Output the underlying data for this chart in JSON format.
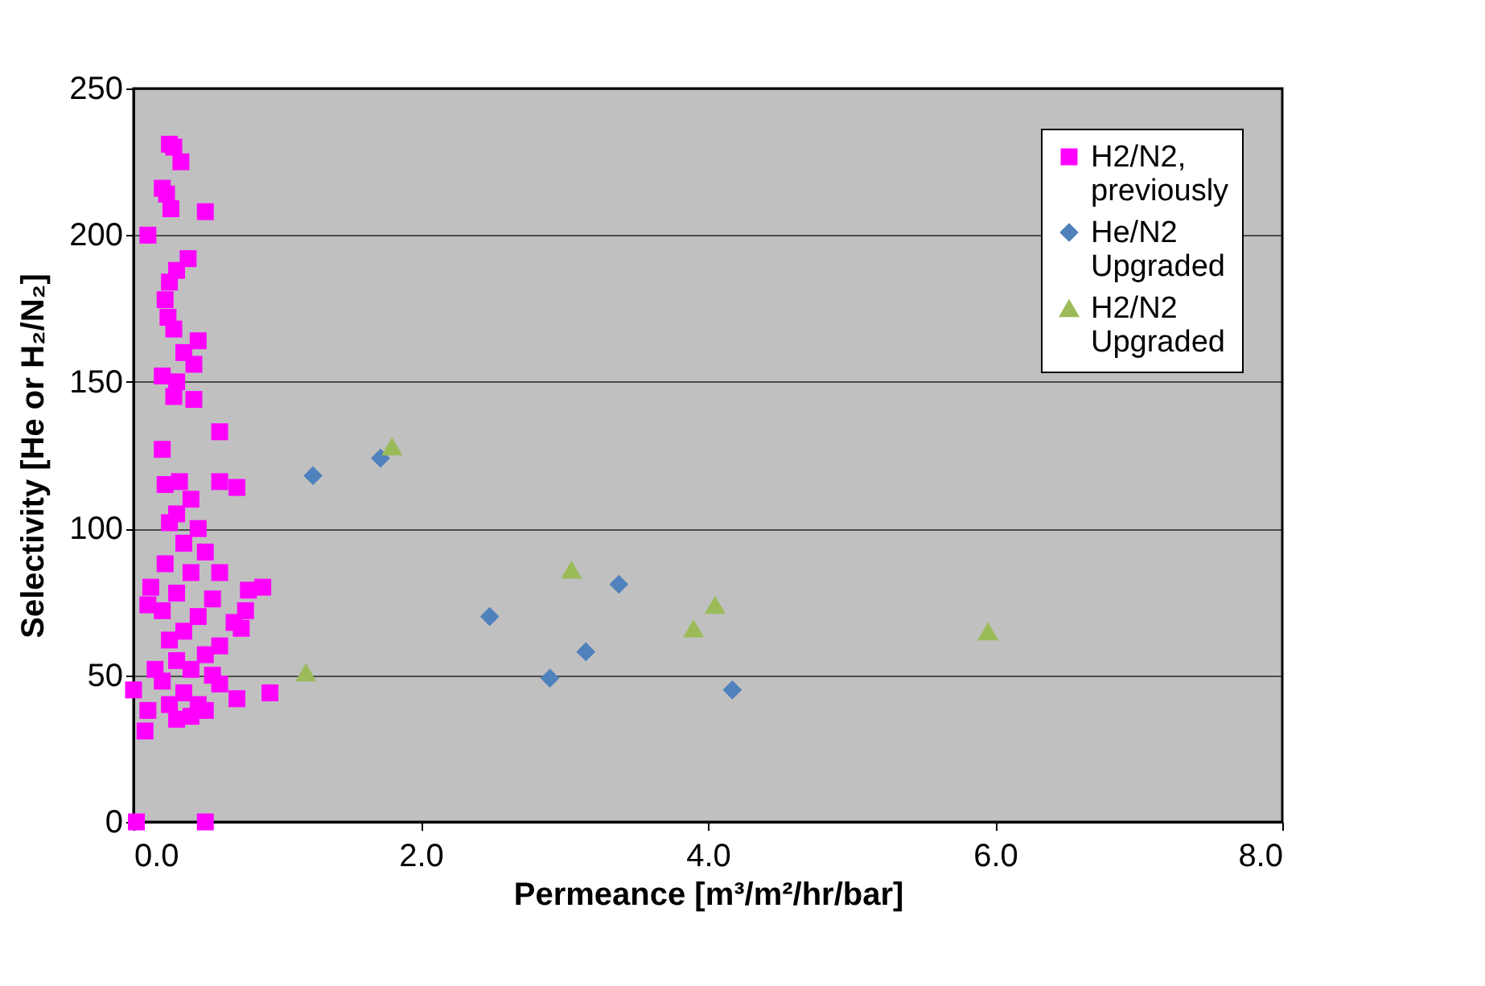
{
  "chart_data": {
    "type": "scatter",
    "xlabel": "Permeance [m³/m²/hr/bar]",
    "ylabel": "Selectivity [He or H₂/N₂]",
    "xlim": [
      0,
      8
    ],
    "xticks": [
      {
        "value": 0,
        "label": "0.0"
      },
      {
        "value": 2,
        "label": "2.0"
      },
      {
        "value": 4,
        "label": "4.0"
      },
      {
        "value": 6,
        "label": "6.0"
      },
      {
        "value": 8,
        "label": "8.0"
      }
    ],
    "ylim": [
      0,
      250
    ],
    "yticks": [
      0,
      50,
      100,
      150,
      200,
      250
    ],
    "grid": "y",
    "legend": "top right",
    "series": [
      {
        "name": "H2/N2, previously",
        "color": "#ff00ff",
        "marker": "square",
        "x": [
          0.02,
          0.5,
          0.1,
          0.25,
          0.28,
          0.33,
          0.2,
          0.23,
          0.26,
          0.5,
          0.38,
          0.3,
          0.25,
          0.22,
          0.24,
          0.28,
          0.45,
          0.35,
          0.42,
          0.2,
          0.3,
          0.28,
          0.42,
          0.6,
          0.2,
          0.22,
          0.32,
          0.6,
          0.72,
          0.4,
          0.3,
          0.25,
          0.45,
          0.35,
          0.5,
          0.22,
          0.4,
          0.6,
          0.9,
          0.8,
          0.12,
          0.3,
          0.55,
          0.1,
          0.2,
          0.78,
          0.45,
          0.7,
          0.35,
          0.75,
          0.25,
          0.6,
          0.5,
          0.3,
          0.4,
          0.15,
          0.55,
          0.2,
          0.6,
          0.0,
          0.35,
          0.95,
          0.72,
          0.25,
          0.45,
          0.1,
          0.5,
          0.3,
          0.08,
          0.4
        ],
        "values": [
          0,
          0,
          200,
          231,
          230,
          225,
          216,
          214,
          209,
          208,
          192,
          188,
          184,
          178,
          172,
          168,
          164,
          160,
          156,
          152,
          150,
          145,
          144,
          133,
          127,
          115,
          116,
          116,
          114,
          110,
          105,
          102,
          100,
          95,
          92,
          88,
          85,
          85,
          80,
          79,
          80,
          78,
          76,
          74,
          72,
          72,
          70,
          68,
          65,
          66,
          62,
          60,
          57,
          55,
          52,
          52,
          50,
          48,
          47,
          45,
          44,
          44,
          42,
          40,
          40,
          38,
          38,
          35,
          31,
          36
        ]
      },
      {
        "name": "He/N2 Upgraded",
        "color": "#4f81bd",
        "marker": "diamond",
        "x": [
          1.25,
          1.72,
          2.48,
          2.9,
          3.15,
          3.38,
          4.17
        ],
        "values": [
          118,
          124,
          70,
          49,
          58,
          81,
          45
        ]
      },
      {
        "name": "H2/N2 Upgraded",
        "color": "#9bbb59",
        "marker": "triangle",
        "x": [
          1.2,
          1.8,
          3.05,
          3.9,
          4.05,
          5.95
        ],
        "values": [
          51,
          128,
          86,
          66,
          74,
          65
        ]
      }
    ]
  }
}
